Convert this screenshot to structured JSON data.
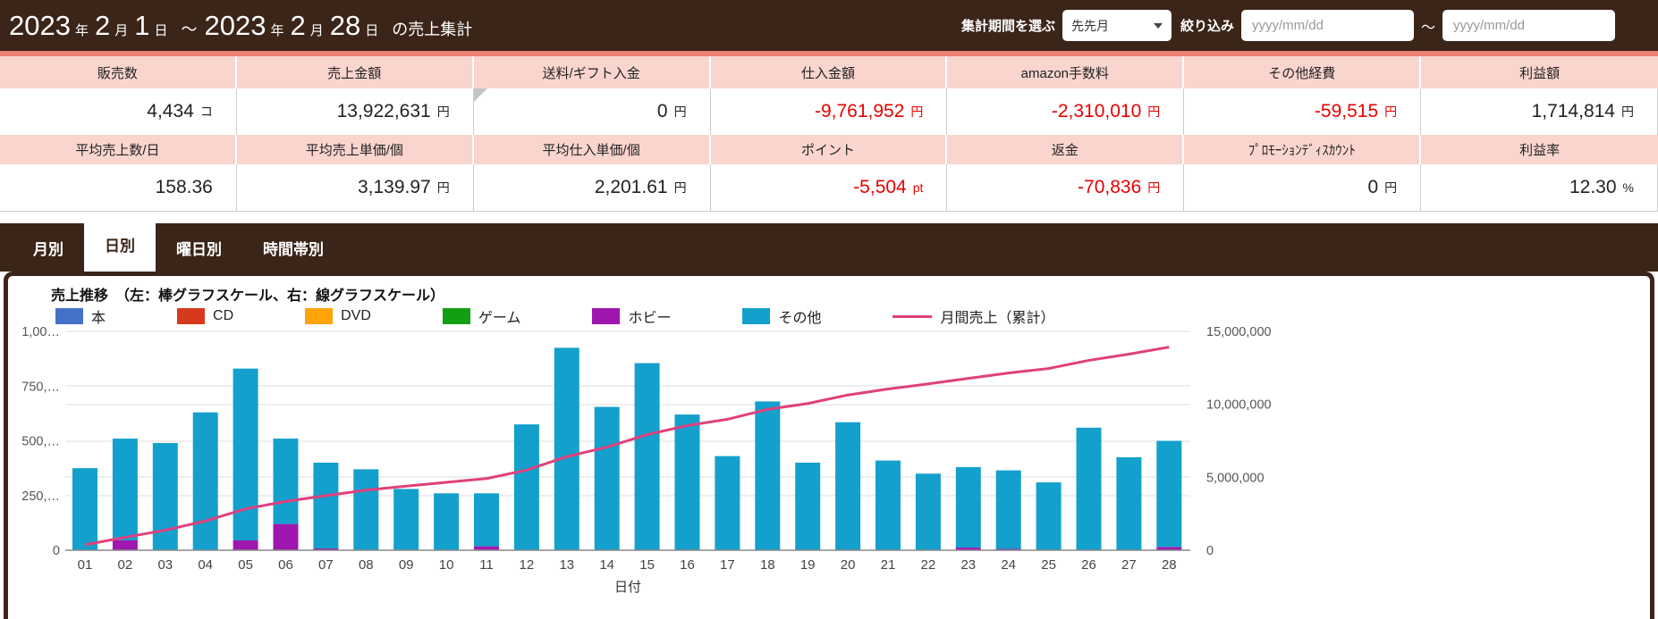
{
  "header": {
    "title_parts": [
      {
        "text": "2023",
        "size": "big"
      },
      {
        "text": "年",
        "size": "small"
      },
      {
        "text": "2",
        "size": "big"
      },
      {
        "text": "月",
        "size": "small"
      },
      {
        "text": "1",
        "size": "big"
      },
      {
        "text": "日",
        "size": "small"
      },
      {
        "text": "～",
        "size": "mid"
      },
      {
        "text": "2023",
        "size": "big"
      },
      {
        "text": "年",
        "size": "small"
      },
      {
        "text": "2",
        "size": "big"
      },
      {
        "text": "月",
        "size": "small"
      },
      {
        "text": "28",
        "size": "big"
      },
      {
        "text": "日",
        "size": "small"
      },
      {
        "text": "の売上集計",
        "size": "mid"
      }
    ],
    "period_label": "集計期間を選ぶ",
    "period_value": "先先月",
    "filter_label": "絞り込み",
    "date_from_placeholder": "yyyy/mm/dd",
    "date_to_placeholder": "yyyy/mm/dd",
    "range_separator": "～"
  },
  "summary": {
    "rows": [
      {
        "type": "header",
        "cells": [
          {
            "label": "販売数"
          },
          {
            "label": "売上金額"
          },
          {
            "label": "送料/ギフト入金"
          },
          {
            "label": "仕入金額"
          },
          {
            "label": "amazon手数料"
          },
          {
            "label": "その他経費"
          },
          {
            "label": "利益額"
          }
        ]
      },
      {
        "type": "value",
        "cells": [
          {
            "num": "4,434",
            "unit": "コ"
          },
          {
            "num": "13,922,631",
            "unit": "円"
          },
          {
            "num": "0",
            "unit": "円",
            "marker": true
          },
          {
            "num": "-9,761,952",
            "unit": "円",
            "negative": true
          },
          {
            "num": "-2,310,010",
            "unit": "円",
            "negative": true
          },
          {
            "num": "-59,515",
            "unit": "円",
            "negative": true
          },
          {
            "num": "1,714,814",
            "unit": "円"
          }
        ]
      },
      {
        "type": "header",
        "cells": [
          {
            "label": "平均売上数/日"
          },
          {
            "label": "平均売上単価/個"
          },
          {
            "label": "平均仕入単価/個"
          },
          {
            "label": "ポイント"
          },
          {
            "label": "返金"
          },
          {
            "label": "ﾌﾟﾛﾓｰｼｮﾝﾃﾞｨｽｶｳﾝﾄ"
          },
          {
            "label": "利益率"
          }
        ]
      },
      {
        "type": "value",
        "cells": [
          {
            "num": "158.36",
            "unit": ""
          },
          {
            "num": "3,139.97",
            "unit": "円"
          },
          {
            "num": "2,201.61",
            "unit": "円"
          },
          {
            "num": "-5,504",
            "unit": "pt",
            "negative": true
          },
          {
            "num": "-70,836",
            "unit": "円",
            "negative": true
          },
          {
            "num": "0",
            "unit": "円"
          },
          {
            "num": "12.30",
            "unit": "%"
          }
        ]
      }
    ]
  },
  "tabs": [
    {
      "key": "monthly",
      "label": "月別",
      "active": false
    },
    {
      "key": "daily",
      "label": "日別",
      "active": true
    },
    {
      "key": "weekday",
      "label": "曜日別",
      "active": false
    },
    {
      "key": "hourly",
      "label": "時間帯別",
      "active": false
    }
  ],
  "chart": {
    "title": "売上推移　（左：棒グラフスケール、右：線グラフスケール）",
    "xlabel": "日付",
    "legend": [
      {
        "key": "book",
        "label": "本",
        "color": "#4472C8",
        "type": "swatch"
      },
      {
        "key": "cd",
        "label": "CD",
        "color": "#D6391B",
        "type": "swatch"
      },
      {
        "key": "dvd",
        "label": "DVD",
        "color": "#FFA408",
        "type": "swatch"
      },
      {
        "key": "game",
        "label": "ゲーム",
        "color": "#12A012",
        "type": "swatch"
      },
      {
        "key": "hobby",
        "label": "ホビー",
        "color": "#A017B0",
        "type": "swatch"
      },
      {
        "key": "other",
        "label": "その他",
        "color": "#14A0CC",
        "type": "swatch"
      },
      {
        "key": "total-line",
        "label": "月間売上（累計）",
        "color": "#E0407C",
        "type": "line"
      }
    ]
  },
  "chart_data": {
    "type": "bar",
    "categories": [
      "01",
      "02",
      "03",
      "04",
      "05",
      "06",
      "07",
      "08",
      "09",
      "10",
      "11",
      "12",
      "13",
      "14",
      "15",
      "16",
      "17",
      "18",
      "19",
      "20",
      "21",
      "22",
      "23",
      "24",
      "25",
      "26",
      "27",
      "28"
    ],
    "series": [
      {
        "name": "ホビー",
        "color": "#A017B0",
        "values": [
          0,
          45000,
          0,
          0,
          45000,
          120000,
          8000,
          0,
          0,
          0,
          18000,
          0,
          0,
          0,
          0,
          0,
          0,
          0,
          0,
          0,
          0,
          0,
          12000,
          6000,
          0,
          0,
          0,
          15000
        ]
      },
      {
        "name": "その他",
        "color": "#14A0CC",
        "values": [
          375000,
          465000,
          490000,
          630000,
          785000,
          390000,
          392000,
          370000,
          280000,
          260000,
          242000,
          575000,
          925000,
          655000,
          855000,
          620000,
          430000,
          680000,
          400000,
          585000,
          410000,
          350000,
          368000,
          359000,
          310000,
          560000,
          425000,
          485000
        ]
      }
    ],
    "line": {
      "name": "月間売上（累計）",
      "color": "#E0407C",
      "axis": "right",
      "values": [
        375000,
        885000,
        1375000,
        2005000,
        2835000,
        3345000,
        3745000,
        4115000,
        4395000,
        4655000,
        4915000,
        5490000,
        6415000,
        7070000,
        7925000,
        8545000,
        8975000,
        9655000,
        10055000,
        10640000,
        11050000,
        11400000,
        11780000,
        12145000,
        12455000,
        13015000,
        13440000,
        13922631
      ]
    },
    "title": "売上推移",
    "xlabel": "日付",
    "left_axis": {
      "max": 1000000,
      "tick_interval": 250000,
      "tick_labels": [
        "0",
        "250,…",
        "500,…",
        "750,…",
        "1,00…"
      ]
    },
    "right_axis": {
      "max": 15000000,
      "tick_interval": 5000000,
      "tick_labels": [
        "0",
        "5,000,000",
        "10,000,000",
        "15,000,000"
      ]
    },
    "grid": true,
    "legend_position": "top"
  },
  "colors": {
    "brown": "#3B2518",
    "salmon": "#EE8076",
    "header_pink": "#FAD5CE",
    "negative": "#E80000",
    "bar_other": "#14A0CC",
    "bar_hobby": "#A017B0",
    "line_pink": "#E0407C",
    "gridline": "#DDDDDD"
  }
}
